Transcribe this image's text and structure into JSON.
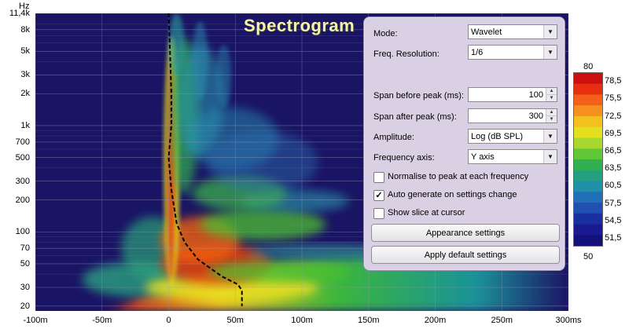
{
  "chart_data": {
    "type": "heatmap",
    "title": "Spectrogram",
    "ylabel_unit": "Hz",
    "x_tick_labels": [
      "-100m",
      "-50m",
      "0",
      "50m",
      "100m",
      "150m",
      "200m",
      "250m",
      "300ms"
    ],
    "x_ticks_s": [
      -0.1,
      -0.05,
      0,
      0.05,
      0.1,
      0.15,
      0.2,
      0.25,
      0.3
    ],
    "y_tick_labels": [
      "11,4k",
      "8k",
      "5k",
      "3k",
      "2k",
      "1k",
      "700",
      "500",
      "300",
      "200",
      "100",
      "70",
      "50",
      "30",
      "20"
    ],
    "y_ticks_hz": [
      11400,
      8000,
      5000,
      3000,
      2000,
      1000,
      700,
      500,
      300,
      200,
      100,
      70,
      50,
      30,
      20
    ],
    "xlim_s": [
      -0.1,
      0.3
    ],
    "ylim_hz": [
      18,
      11400
    ],
    "y_scale": "log",
    "color_scale": {
      "min": 50,
      "max": 80,
      "labels": [
        "78,5",
        "75,5",
        "72,5",
        "69,5",
        "66,5",
        "63,5",
        "60,5",
        "57,5",
        "54,5",
        "51,5"
      ],
      "top_label": "80",
      "bottom_label": "50"
    },
    "peak_curve": {
      "description_values": "dashed black line tracking peak energy time vs frequency",
      "points_s_hz": [
        [
          0.0,
          11400
        ],
        [
          0.001,
          5000
        ],
        [
          0.002,
          2000
        ],
        [
          0.002,
          1000
        ],
        [
          0.0,
          500
        ],
        [
          0.002,
          250
        ],
        [
          0.006,
          120
        ],
        [
          0.012,
          80
        ],
        [
          0.022,
          55
        ],
        [
          0.04,
          38
        ],
        [
          0.052,
          32
        ],
        [
          0.055,
          28
        ],
        [
          0.055,
          20
        ]
      ]
    }
  },
  "panel": {
    "mode_label": "Mode:",
    "mode_value": "Wavelet",
    "freq_res_label": "Freq. Resolution:",
    "freq_res_value": "1/6",
    "span_before_label": "Span before peak (ms):",
    "span_before_value": "100",
    "span_after_label": "Span after peak (ms):",
    "span_after_value": "300",
    "amplitude_label": "Amplitude:",
    "amplitude_value": "Log (dB SPL)",
    "freq_axis_label": "Frequency axis:",
    "freq_axis_value": "Y axis",
    "normalise_label": "Normalise to peak at each frequency",
    "normalise_checked": false,
    "auto_generate_label": "Auto generate on settings change",
    "auto_generate_checked": true,
    "show_slice_label": "Show slice at cursor",
    "show_slice_checked": false,
    "appearance_button": "Appearance settings",
    "apply_defaults_button": "Apply default settings"
  },
  "icons": {
    "combo_arrow": "chevron-down-icon",
    "spin_up": "spin-up-icon",
    "spin_down": "spin-down-icon",
    "check": "checkmark-icon"
  },
  "colors": {
    "background": "#1a1464",
    "panel": "#d9d0e4",
    "title": "#f4f4a8"
  }
}
